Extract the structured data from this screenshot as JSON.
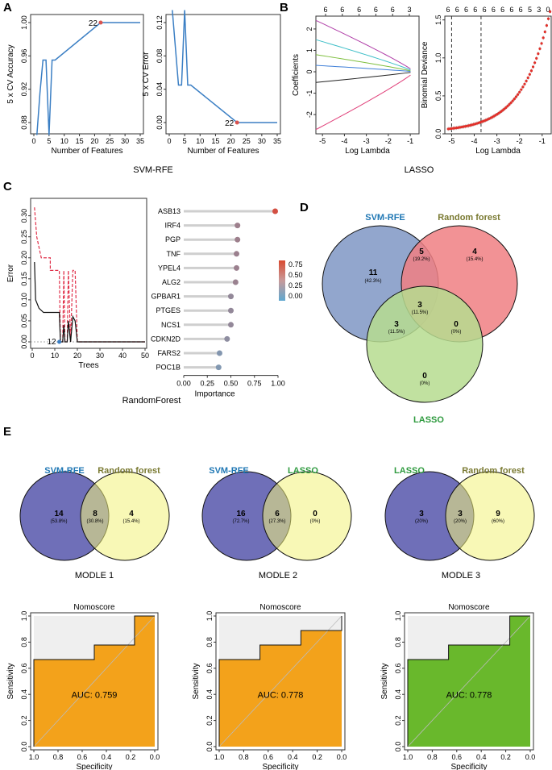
{
  "panel_labels": [
    "A",
    "B",
    "C",
    "D",
    "E"
  ],
  "colors": {
    "blue_line": "#3b7fc4",
    "red_point": "#d9534f",
    "svm_blue": "#1f77b4",
    "rf_olive": "#7a7a32",
    "lasso_green": "#2e9a3e",
    "venn_d_svm": "#7f96c4",
    "venn_d_rf": "#f07f82",
    "venn_d_lasso": "#b6dc8f",
    "venn_e_purple": "#6f6fb8",
    "venn_e_yellow": "#f2f27a",
    "roc_orange": "#f3a21b",
    "roc_green": "#69b82c",
    "roc_grey": "#efefef"
  },
  "chart_data": [
    {
      "id": "A_accuracy",
      "type": "line",
      "xlabel": "Number of Features",
      "ylabel": "5 x CV Accuracy",
      "x": [
        1,
        2,
        3,
        4,
        5,
        6,
        7,
        22,
        23,
        24,
        35
      ],
      "y": [
        0.865,
        0.915,
        0.955,
        0.955,
        0.865,
        0.955,
        0.955,
        1.0,
        1.0,
        1.0,
        1.0
      ],
      "xlim": [
        0,
        35
      ],
      "ylim": [
        0.86,
        1.0
      ],
      "xticks": [
        "0",
        "5",
        "10",
        "15",
        "20",
        "25",
        "30",
        "35"
      ],
      "yticks": [
        "0.88",
        "0.92",
        "0.96",
        "1.00"
      ],
      "highlight": {
        "x": 22,
        "y": 1.0,
        "label": "22"
      }
    },
    {
      "id": "A_error",
      "type": "line",
      "xlabel": "Number of Features",
      "ylabel": "5 x CV Error",
      "x": [
        1,
        2,
        3,
        4,
        5,
        6,
        7,
        22,
        23,
        35
      ],
      "y": [
        0.135,
        0.09,
        0.045,
        0.045,
        0.135,
        0.045,
        0.045,
        0.0,
        0.0,
        0.0
      ],
      "xlim": [
        0,
        35
      ],
      "ylim": [
        0,
        0.14
      ],
      "xticks": [
        "0",
        "5",
        "10",
        "15",
        "20",
        "25",
        "30",
        "35"
      ],
      "yticks": [
        "0.00",
        "0.04",
        "0.08",
        "0.12"
      ],
      "highlight": {
        "x": 22,
        "y": 0.0,
        "label": "22"
      }
    },
    {
      "id": "B_coefficients",
      "type": "line",
      "xlabel": "Log Lambda",
      "ylabel": "Coefficients",
      "xlim": [
        -5.3,
        -0.6
      ],
      "ylim": [
        -2.9,
        2.6
      ],
      "xticks": [
        "-5",
        "-4",
        "-3",
        "-2",
        "-1"
      ],
      "yticks": [
        "-2",
        "-1",
        "0",
        "1",
        "2"
      ],
      "top_axis": [
        "6",
        "6",
        "6",
        "6",
        "6",
        "3"
      ],
      "series": [
        {
          "name": "purple",
          "color": "#b03fa8",
          "start": 2.4
        },
        {
          "name": "cyan",
          "color": "#3fbfc8",
          "start": 1.5
        },
        {
          "name": "green",
          "color": "#7fbf3f",
          "start": 0.8
        },
        {
          "name": "blue",
          "color": "#3f7fd8",
          "start": 0.3
        },
        {
          "name": "black",
          "color": "#222222",
          "start": -0.5
        },
        {
          "name": "pink",
          "color": "#e0407a",
          "start": -2.7
        }
      ]
    },
    {
      "id": "B_deviance",
      "type": "scatter",
      "xlabel": "Log Lambda",
      "ylabel": "Binomial Deviance",
      "xlim": [
        -5.3,
        -0.6
      ],
      "ylim": [
        0.0,
        1.55
      ],
      "xticks": [
        "-5",
        "-4",
        "-3",
        "-2",
        "-1"
      ],
      "yticks": [
        "0.0",
        "0.5",
        "1.0",
        "1.5"
      ],
      "top_axis": [
        "6",
        "6",
        "6",
        "6",
        "6",
        "6",
        "6",
        "6",
        "6",
        "5",
        "3",
        "0"
      ],
      "vlines": [
        -5.0,
        -3.7
      ]
    },
    {
      "id": "C_error",
      "type": "line",
      "xlabel": "Trees",
      "ylabel": "Error",
      "xlim": [
        0,
        50
      ],
      "ylim": [
        0,
        0.33
      ],
      "xticks": [
        "0",
        "10",
        "20",
        "30",
        "40",
        "50"
      ],
      "yticks": [
        "0.00",
        "0.05",
        "0.10",
        "0.15",
        "0.20",
        "0.25",
        "0.30"
      ],
      "highlight": {
        "x": 12,
        "y": 0.0,
        "label": "12"
      }
    },
    {
      "id": "C_importance",
      "type": "lollipop",
      "xlabel": "Importance",
      "categories": [
        "ASB13",
        "IRF4",
        "PGP",
        "TNF",
        "YPEL4",
        "ALG2",
        "GPBAR1",
        "PTGES",
        "NCS1",
        "CDKN2D",
        "FARS2",
        "POC1B"
      ],
      "values": [
        0.97,
        0.57,
        0.57,
        0.56,
        0.56,
        0.55,
        0.5,
        0.5,
        0.5,
        0.46,
        0.38,
        0.37
      ],
      "xlim": [
        0,
        1.0
      ],
      "xticks": [
        "0.00",
        "0.25",
        "0.50",
        "0.75",
        "1.00"
      ],
      "legend_ticks": [
        "0.75",
        "0.50",
        "0.25",
        "0.00"
      ]
    },
    {
      "id": "E_roc1",
      "type": "line",
      "title": "Nomoscore",
      "auc": "AUC: 0.759",
      "color": "#f3a21b",
      "xlabel": "Specificity",
      "ylabel": "Sensitivity",
      "spec": [
        1.0,
        1.0,
        0.5,
        0.5,
        0.167,
        0.167,
        0.0
      ],
      "sens": [
        0.0,
        0.667,
        0.667,
        0.778,
        0.778,
        1.0,
        1.0
      ],
      "xticks": [
        "1.0",
        "0.8",
        "0.6",
        "0.4",
        "0.2",
        "0.0"
      ],
      "yticks": [
        "0.0",
        "0.2",
        "0.4",
        "0.6",
        "0.8",
        "1.0"
      ]
    },
    {
      "id": "E_roc2",
      "type": "line",
      "title": "Nomoscore",
      "auc": "AUC: 0.778",
      "color": "#f3a21b",
      "xlabel": "Specificity",
      "ylabel": "Sensitivity",
      "spec": [
        1.0,
        1.0,
        0.667,
        0.667,
        0.333,
        0.333,
        0.0,
        0.0
      ],
      "sens": [
        0.0,
        0.667,
        0.667,
        0.778,
        0.778,
        0.889,
        0.889,
        1.0
      ],
      "xticks": [
        "1.0",
        "0.8",
        "0.6",
        "0.4",
        "0.2",
        "0.0"
      ],
      "yticks": [
        "0.0",
        "0.2",
        "0.4",
        "0.6",
        "0.8",
        "1.0"
      ]
    },
    {
      "id": "E_roc3",
      "type": "line",
      "title": "Nomoscore",
      "auc": "AUC: 0.778",
      "color": "#69b82c",
      "xlabel": "Specificity",
      "ylabel": "Sensitivity",
      "spec": [
        1.0,
        1.0,
        0.667,
        0.667,
        0.167,
        0.167,
        0.0
      ],
      "sens": [
        0.0,
        0.667,
        0.667,
        0.778,
        0.778,
        1.0,
        1.0
      ],
      "xticks": [
        "1.0",
        "0.8",
        "0.6",
        "0.4",
        "0.2",
        "0.0"
      ],
      "yticks": [
        "0.0",
        "0.2",
        "0.4",
        "0.6",
        "0.8",
        "1.0"
      ]
    }
  ],
  "captions": {
    "a": "SVM-RFE",
    "b": "LASSO",
    "c": "RandomForest"
  },
  "venn_d": {
    "labels": {
      "svm": "SVM-RFE",
      "rf": "Random forest",
      "lasso": "LASSO"
    },
    "regions": [
      {
        "n": "11",
        "pct": "(42.3%)"
      },
      {
        "n": "5",
        "pct": "(19.2%)"
      },
      {
        "n": "4",
        "pct": "(15.4%)"
      },
      {
        "n": "3",
        "pct": "(11.5%)"
      },
      {
        "n": "3",
        "pct": "(11.5%)"
      },
      {
        "n": "0",
        "pct": "(0%)"
      },
      {
        "n": "0",
        "pct": "(0%)"
      }
    ]
  },
  "venn_e": [
    {
      "left": "SVM-RFE",
      "right": "Random forest",
      "a": "14",
      "ap": "(53.8%)",
      "ab": "8",
      "abp": "(30.8%)",
      "b": "4",
      "bp": "(15.4%)",
      "title": "MODLE 1"
    },
    {
      "left": "SVM-RFE",
      "right": "LASSO",
      "a": "16",
      "ap": "(72.7%)",
      "ab": "6",
      "abp": "(27.3%)",
      "b": "0",
      "bp": "(0%)",
      "title": "MODLE 2"
    },
    {
      "left": "LASSO",
      "right": "Random forest",
      "a": "3",
      "ap": "(20%)",
      "ab": "3",
      "abp": "(20%)",
      "b": "9",
      "bp": "(60%)",
      "title": "MODLE 3"
    }
  ]
}
